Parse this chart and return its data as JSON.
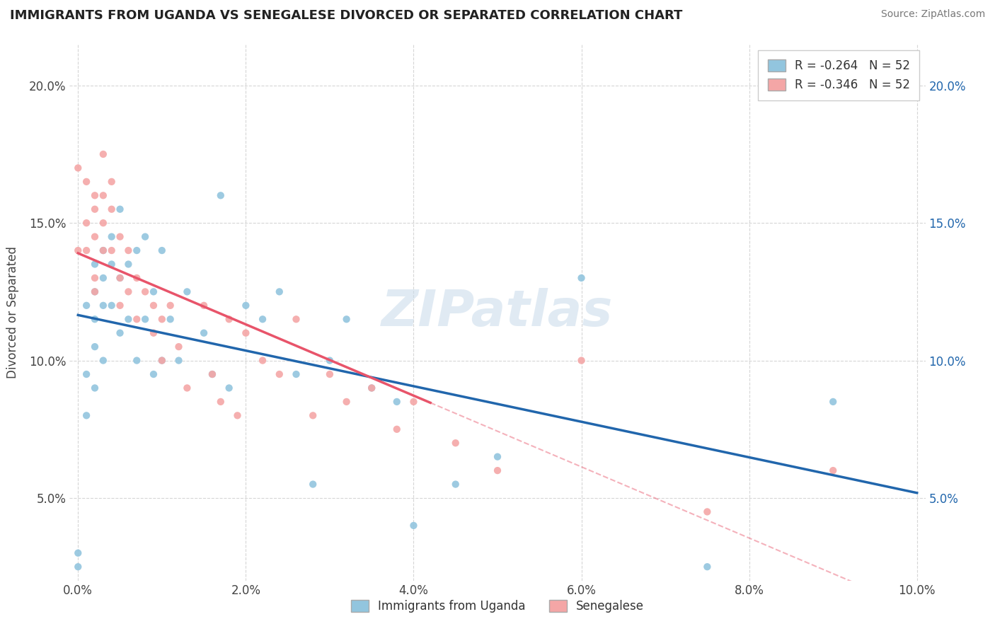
{
  "title": "IMMIGRANTS FROM UGANDA VS SENEGALESE DIVORCED OR SEPARATED CORRELATION CHART",
  "source_text": "Source: ZipAtlas.com",
  "ylabel": "Divorced or Separated",
  "r1": -0.264,
  "n1": 52,
  "r2": -0.346,
  "n2": 52,
  "color1": "#92c5de",
  "color2": "#f4a6a6",
  "trendline1_color": "#2166ac",
  "trendline2_color": "#e8546a",
  "xmin": 0.0,
  "xmax": 0.1,
  "ymin": 0.02,
  "ymax": 0.215,
  "xtick_labels": [
    "0.0%",
    "2.0%",
    "4.0%",
    "6.0%",
    "8.0%",
    "10.0%"
  ],
  "xtick_values": [
    0.0,
    0.02,
    0.04,
    0.06,
    0.08,
    0.1
  ],
  "ytick_labels": [
    "5.0%",
    "10.0%",
    "15.0%",
    "20.0%"
  ],
  "ytick_values": [
    0.05,
    0.1,
    0.15,
    0.2
  ],
  "legend_label1": "Immigrants from Uganda",
  "legend_label2": "Senegalese",
  "watermark": "ZIPatlas",
  "background_color": "#ffffff",
  "grid_color": "#cccccc",
  "fig_width": 14.06,
  "fig_height": 8.92,
  "scatter1_x": [
    0.0,
    0.0,
    0.001,
    0.001,
    0.001,
    0.002,
    0.002,
    0.002,
    0.002,
    0.002,
    0.003,
    0.003,
    0.003,
    0.003,
    0.004,
    0.004,
    0.004,
    0.005,
    0.005,
    0.005,
    0.006,
    0.006,
    0.007,
    0.007,
    0.008,
    0.008,
    0.009,
    0.009,
    0.01,
    0.01,
    0.011,
    0.012,
    0.013,
    0.015,
    0.016,
    0.017,
    0.018,
    0.02,
    0.022,
    0.024,
    0.026,
    0.028,
    0.03,
    0.032,
    0.035,
    0.038,
    0.04,
    0.045,
    0.05,
    0.06,
    0.075,
    0.09
  ],
  "scatter1_y": [
    0.025,
    0.03,
    0.12,
    0.095,
    0.08,
    0.135,
    0.125,
    0.115,
    0.105,
    0.09,
    0.14,
    0.13,
    0.12,
    0.1,
    0.145,
    0.135,
    0.12,
    0.155,
    0.13,
    0.11,
    0.135,
    0.115,
    0.14,
    0.1,
    0.145,
    0.115,
    0.125,
    0.095,
    0.14,
    0.1,
    0.115,
    0.1,
    0.125,
    0.11,
    0.095,
    0.16,
    0.09,
    0.12,
    0.115,
    0.125,
    0.095,
    0.055,
    0.1,
    0.115,
    0.09,
    0.085,
    0.04,
    0.055,
    0.065,
    0.13,
    0.025,
    0.085
  ],
  "scatter2_x": [
    0.0,
    0.0,
    0.001,
    0.001,
    0.001,
    0.002,
    0.002,
    0.002,
    0.002,
    0.002,
    0.003,
    0.003,
    0.003,
    0.003,
    0.004,
    0.004,
    0.004,
    0.005,
    0.005,
    0.005,
    0.006,
    0.006,
    0.007,
    0.007,
    0.008,
    0.009,
    0.009,
    0.01,
    0.01,
    0.011,
    0.012,
    0.013,
    0.015,
    0.016,
    0.017,
    0.018,
    0.019,
    0.02,
    0.022,
    0.024,
    0.026,
    0.028,
    0.03,
    0.032,
    0.035,
    0.038,
    0.04,
    0.045,
    0.05,
    0.06,
    0.075,
    0.09
  ],
  "scatter2_y": [
    0.14,
    0.17,
    0.165,
    0.15,
    0.14,
    0.16,
    0.155,
    0.145,
    0.13,
    0.125,
    0.175,
    0.16,
    0.15,
    0.14,
    0.165,
    0.155,
    0.14,
    0.145,
    0.13,
    0.12,
    0.14,
    0.125,
    0.13,
    0.115,
    0.125,
    0.12,
    0.11,
    0.115,
    0.1,
    0.12,
    0.105,
    0.09,
    0.12,
    0.095,
    0.085,
    0.115,
    0.08,
    0.11,
    0.1,
    0.095,
    0.115,
    0.08,
    0.095,
    0.085,
    0.09,
    0.075,
    0.085,
    0.07,
    0.06,
    0.1,
    0.045,
    0.06
  ]
}
